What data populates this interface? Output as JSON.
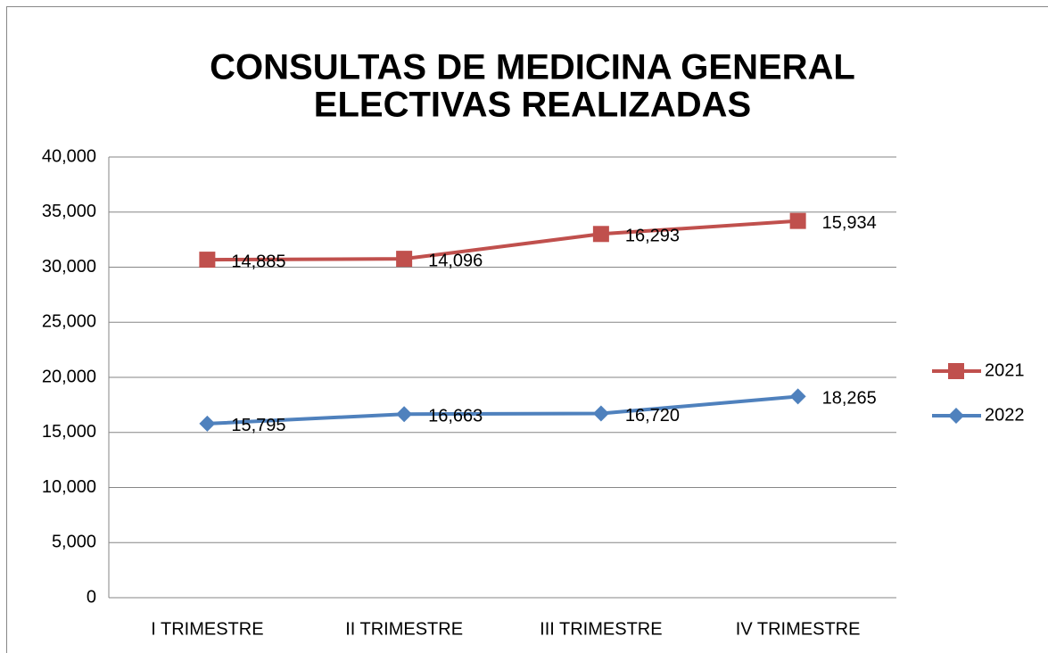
{
  "chart_data": {
    "type": "line",
    "stacked": true,
    "title": [
      "CONSULTAS DE MEDICINA GENERAL",
      "ELECTIVAS REALIZADAS"
    ],
    "categories": [
      "I TRIMESTRE",
      "II TRIMESTRE",
      "III TRIMESTRE",
      "IV TRIMESTRE"
    ],
    "series": [
      {
        "name": "2021",
        "color": "#c0504d",
        "marker": "square",
        "values": [
          14885,
          14096,
          16293,
          15934
        ],
        "value_labels": [
          "14,885",
          "14,096",
          "16,293",
          "15,934"
        ]
      },
      {
        "name": "2022",
        "color": "#4f81bd",
        "marker": "diamond",
        "values": [
          15795,
          16663,
          16720,
          18265
        ],
        "value_labels": [
          "15,795",
          "16,663",
          "16,720",
          "18,265"
        ]
      }
    ],
    "ylim": [
      0,
      40000
    ],
    "yticks": [
      0,
      {
        "value": 5000,
        "label": "5,000"
      },
      {
        "value": 10000,
        "label": "10,000"
      },
      {
        "value": 15000,
        "label": "15,000"
      },
      {
        "value": 20000,
        "label": "20,000"
      },
      {
        "value": 25000,
        "label": "25,000"
      },
      {
        "value": 30000,
        "label": "30,000"
      },
      {
        "value": 35000,
        "label": "35,000"
      },
      {
        "value": 40000,
        "label": "40,000"
      }
    ],
    "grid": true,
    "legend": "right"
  }
}
